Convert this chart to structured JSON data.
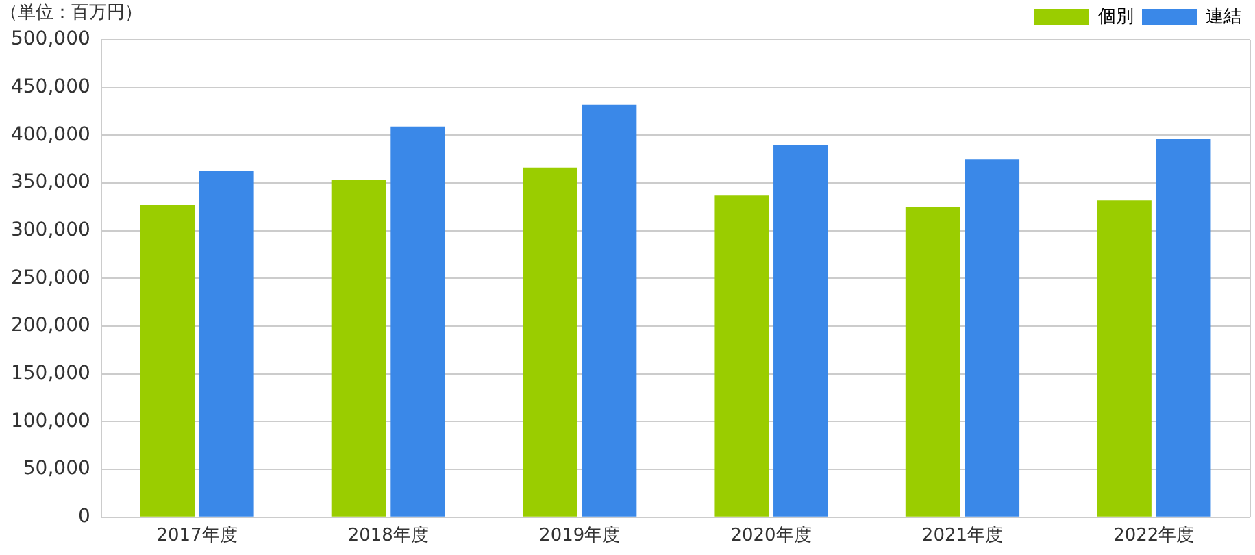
{
  "chart_data": {
    "type": "bar",
    "ylabel": "（単位：百万円）",
    "categories": [
      "2017年度",
      "2018年度",
      "2019年度",
      "2020年度",
      "2021年度",
      "2022年度"
    ],
    "series": [
      {
        "name": "個別",
        "color": "#9acd00",
        "values": [
          327000,
          353000,
          366000,
          337000,
          325000,
          332000
        ]
      },
      {
        "name": "連結",
        "color": "#3a88e8",
        "values": [
          363000,
          409000,
          432000,
          390000,
          375000,
          396000
        ]
      }
    ],
    "ylim": [
      0,
      500000
    ],
    "yticks": [
      {
        "value": 0,
        "label": "0"
      },
      {
        "value": 50000,
        "label": "50,000"
      },
      {
        "value": 100000,
        "label": "100,000"
      },
      {
        "value": 150000,
        "label": "150,000"
      },
      {
        "value": 200000,
        "label": "200,000"
      },
      {
        "value": 250000,
        "label": "250,000"
      },
      {
        "value": 300000,
        "label": "300,000"
      },
      {
        "value": 350000,
        "label": "350,000"
      },
      {
        "value": 400000,
        "label": "400,000"
      },
      {
        "value": 450000,
        "label": "450,000"
      },
      {
        "value": 500000,
        "label": "500,000"
      }
    ],
    "grid": "y",
    "legend": "top right"
  }
}
